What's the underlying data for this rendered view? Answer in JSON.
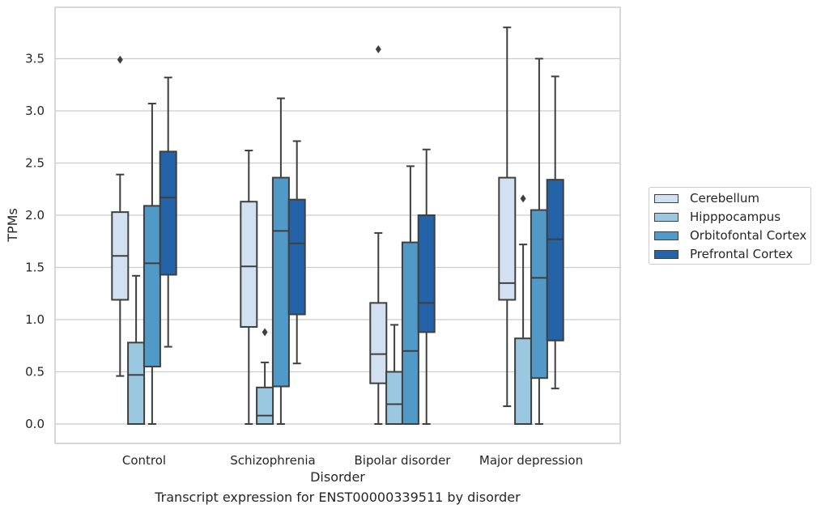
{
  "caption": "Transcript expression for ENST00000339511 by disorder",
  "chart_data": {
    "type": "box",
    "title": "",
    "xlabel": "Disorder",
    "ylabel": "TPMs",
    "ylim": [
      -0.18,
      3.98
    ],
    "yticks": [
      "0.0",
      "0.5",
      "1.0",
      "1.5",
      "2.0",
      "2.5",
      "3.0",
      "3.5"
    ],
    "grid": "horizontal",
    "legend_position": "right",
    "categories": [
      "Control",
      "Schizophrenia",
      "Bipolar disorder",
      "Major depression"
    ],
    "series": [
      {
        "name": "Cerebellum",
        "color": "#d2e1f1",
        "boxes": [
          {
            "whisker_low": 0.46,
            "q1": 1.19,
            "median": 1.61,
            "q3": 2.03,
            "whisker_high": 2.39,
            "outliers": [
              3.49
            ]
          },
          {
            "whisker_low": 0.0,
            "q1": 0.93,
            "median": 1.51,
            "q3": 2.13,
            "whisker_high": 2.62,
            "outliers": []
          },
          {
            "whisker_low": 0.0,
            "q1": 0.39,
            "median": 0.67,
            "q3": 1.16,
            "whisker_high": 1.83,
            "outliers": [
              3.59
            ]
          },
          {
            "whisker_low": 0.17,
            "q1": 1.19,
            "median": 1.35,
            "q3": 2.36,
            "whisker_high": 3.8,
            "outliers": []
          }
        ]
      },
      {
        "name": "Hipppocampus",
        "color": "#9ac8e0",
        "boxes": [
          {
            "whisker_low": 0.0,
            "q1": 0.0,
            "median": 0.47,
            "q3": 0.78,
            "whisker_high": 1.42,
            "outliers": []
          },
          {
            "whisker_low": 0.0,
            "q1": 0.0,
            "median": 0.08,
            "q3": 0.35,
            "whisker_high": 0.59,
            "outliers": [
              0.88
            ]
          },
          {
            "whisker_low": 0.0,
            "q1": 0.0,
            "median": 0.19,
            "q3": 0.5,
            "whisker_high": 0.95,
            "outliers": []
          },
          {
            "whisker_low": 0.0,
            "q1": 0.0,
            "median": 0.0,
            "q3": 0.82,
            "whisker_high": 1.72,
            "outliers": [
              2.16
            ]
          }
        ]
      },
      {
        "name": "Orbitofontal Cortex",
        "color": "#5199c7",
        "boxes": [
          {
            "whisker_low": 0.0,
            "q1": 0.55,
            "median": 1.54,
            "q3": 2.09,
            "whisker_high": 3.07,
            "outliers": []
          },
          {
            "whisker_low": 0.0,
            "q1": 0.36,
            "median": 1.85,
            "q3": 2.36,
            "whisker_high": 3.12,
            "outliers": []
          },
          {
            "whisker_low": 0.0,
            "q1": 0.0,
            "median": 0.7,
            "q3": 1.74,
            "whisker_high": 2.47,
            "outliers": []
          },
          {
            "whisker_low": 0.0,
            "q1": 0.44,
            "median": 1.4,
            "q3": 2.05,
            "whisker_high": 3.5,
            "outliers": []
          }
        ]
      },
      {
        "name": "Prefrontal Cortex",
        "color": "#2463a8",
        "boxes": [
          {
            "whisker_low": 0.74,
            "q1": 1.43,
            "median": 2.17,
            "q3": 2.61,
            "whisker_high": 3.32,
            "outliers": []
          },
          {
            "whisker_low": 0.58,
            "q1": 1.05,
            "median": 1.73,
            "q3": 2.15,
            "whisker_high": 2.71,
            "outliers": []
          },
          {
            "whisker_low": 0.0,
            "q1": 0.88,
            "median": 1.16,
            "q3": 2.0,
            "whisker_high": 2.63,
            "outliers": []
          },
          {
            "whisker_low": 0.34,
            "q1": 0.8,
            "median": 1.77,
            "q3": 2.34,
            "whisker_high": 3.33,
            "outliers": []
          }
        ]
      }
    ]
  }
}
